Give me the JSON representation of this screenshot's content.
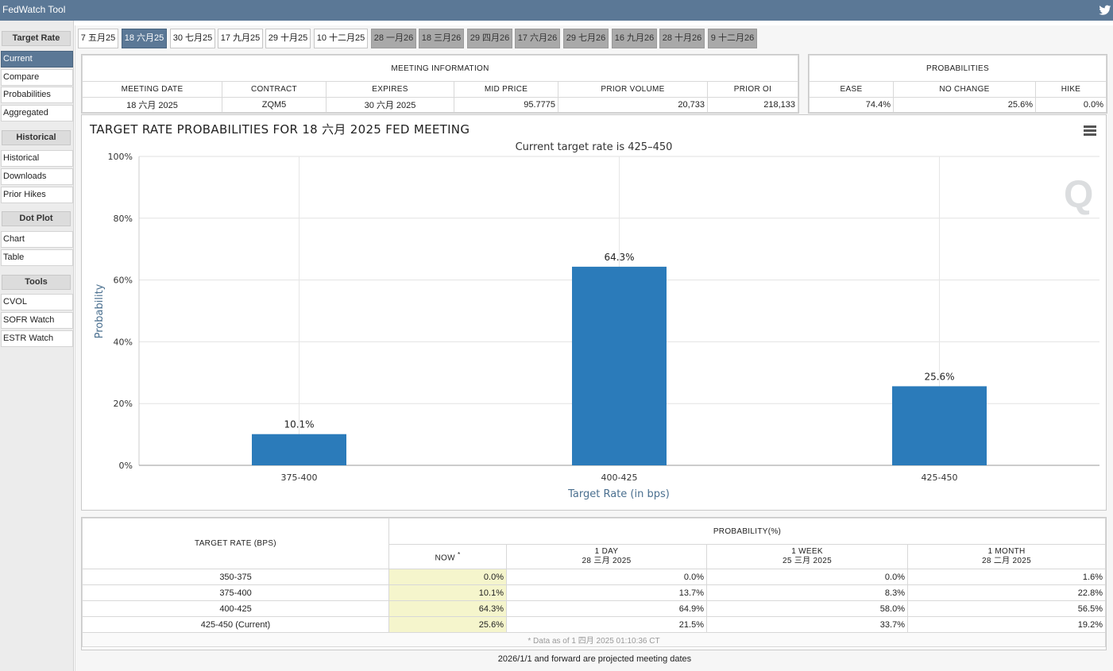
{
  "app": {
    "title": "FedWatch Tool"
  },
  "sidebar": {
    "sections": [
      {
        "heading": "Target Rate",
        "items": [
          "Current",
          "Compare",
          "Probabilities",
          "Aggregated"
        ]
      },
      {
        "heading": "Historical",
        "items": [
          "Historical",
          "Downloads",
          "Prior Hikes"
        ]
      },
      {
        "heading": "Dot Plot",
        "items": [
          "Chart",
          "Table"
        ]
      },
      {
        "heading": "Tools",
        "items": [
          "CVOL",
          "SOFR Watch",
          "ESTR Watch"
        ]
      }
    ],
    "active_item": "Current"
  },
  "tabs": [
    {
      "label": "7 五月25",
      "state": "normal"
    },
    {
      "label": "18 六月25",
      "state": "active"
    },
    {
      "label": "30 七月25",
      "state": "normal"
    },
    {
      "label": "17 九月25",
      "state": "normal"
    },
    {
      "label": "29 十月25",
      "state": "normal"
    },
    {
      "label": "10 十二月25",
      "state": "normal"
    },
    {
      "label": "28 一月26",
      "state": "future"
    },
    {
      "label": "18 三月26",
      "state": "future"
    },
    {
      "label": "29 四月26",
      "state": "future"
    },
    {
      "label": "17 六月26",
      "state": "future"
    },
    {
      "label": "29 七月26",
      "state": "future"
    },
    {
      "label": "16 九月26",
      "state": "future"
    },
    {
      "label": "28 十月26",
      "state": "future"
    },
    {
      "label": "9 十二月26",
      "state": "future"
    }
  ],
  "meeting_info": {
    "heading": "MEETING INFORMATION",
    "columns": [
      "MEETING DATE",
      "CONTRACT",
      "EXPIRES",
      "MID PRICE",
      "PRIOR VOLUME",
      "PRIOR OI"
    ],
    "values": [
      "18 六月 2025",
      "ZQM5",
      "30 六月 2025",
      "95.7775",
      "20,733",
      "218,133"
    ]
  },
  "probabilities": {
    "heading": "PROBABILITIES",
    "columns": [
      "EASE",
      "NO CHANGE",
      "HIKE"
    ],
    "values": [
      "74.4%",
      "25.6%",
      "0.0%"
    ]
  },
  "chart": {
    "title": "TARGET RATE PROBABILITIES FOR 18 六月 2025 FED MEETING",
    "subtitle": "Current target rate is 425–450"
  },
  "chart_data": {
    "type": "bar",
    "categories": [
      "375-400",
      "400-425",
      "425-450"
    ],
    "values": [
      10.1,
      64.3,
      25.6
    ],
    "data_labels": [
      "10.1%",
      "64.3%",
      "25.6%"
    ],
    "title": "TARGET RATE PROBABILITIES FOR 18 六月 2025 FED MEETING",
    "subtitle": "Current target rate is 425–450",
    "xlabel": "Target Rate (in bps)",
    "ylabel": "Probability",
    "ylim": [
      0,
      100
    ],
    "yticks": [
      "0%",
      "20%",
      "40%",
      "60%",
      "80%",
      "100%"
    ],
    "grid": true,
    "bar_color": "#2b7bba"
  },
  "prob_table": {
    "rate_heading": "TARGET RATE (BPS)",
    "prob_heading": "PROBABILITY(%)",
    "col_now": "NOW",
    "col_now_mark": "*",
    "col_1day": "1 DAY",
    "col_1day_date": "28 三月 2025",
    "col_1week": "1 WEEK",
    "col_1week_date": "25 三月 2025",
    "col_1month": "1 MONTH",
    "col_1month_date": "28 二月 2025",
    "rows": [
      {
        "rate": "350-375",
        "now": "0.0%",
        "day": "0.0%",
        "week": "0.0%",
        "month": "1.6%"
      },
      {
        "rate": "375-400",
        "now": "10.1%",
        "day": "13.7%",
        "week": "8.3%",
        "month": "22.8%"
      },
      {
        "rate": "400-425",
        "now": "64.3%",
        "day": "64.9%",
        "week": "58.0%",
        "month": "56.5%"
      },
      {
        "rate": "425-450 (Current)",
        "now": "25.6%",
        "day": "21.5%",
        "week": "33.7%",
        "month": "19.2%"
      }
    ],
    "data_note": "* Data as of 1 四月 2025 01:10:36 CT"
  },
  "footnote": "2026/1/1 and forward are projected meeting dates"
}
